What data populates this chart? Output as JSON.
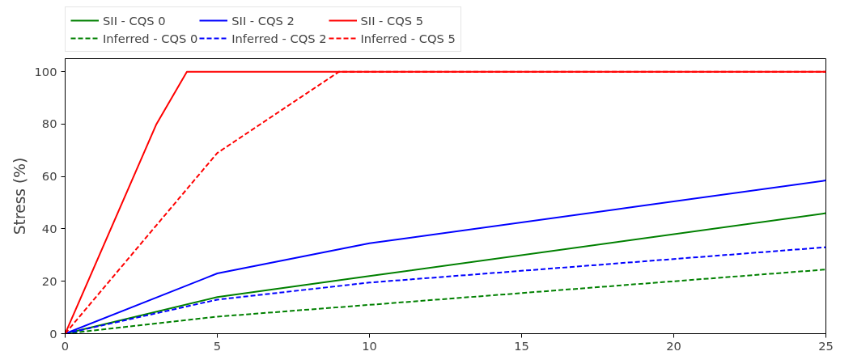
{
  "chart_data": {
    "type": "line",
    "ylabel": "Stress (%)",
    "xlim": [
      0,
      25
    ],
    "ylim": [
      0,
      105
    ],
    "xticks": [
      0,
      5,
      10,
      15,
      20,
      25
    ],
    "yticks": [
      0,
      20,
      40,
      60,
      80,
      100
    ],
    "grid": false,
    "legend": "top left",
    "marker": "none",
    "series": [
      {
        "name": "SII - CQS 0",
        "color": "#008000",
        "line_style": "solid",
        "x": [
          0,
          5,
          10,
          25
        ],
        "values": [
          0,
          14,
          22,
          46
        ]
      },
      {
        "name": "Inferred - CQS 0",
        "color": "#008000",
        "line_style": "dashed",
        "x": [
          0,
          5,
          10,
          25
        ],
        "values": [
          0,
          6.5,
          11,
          24.5
        ]
      },
      {
        "name": "SII - CQS 2",
        "color": "#0000ff",
        "line_style": "solid",
        "x": [
          0,
          5,
          10,
          25
        ],
        "values": [
          0,
          23,
          34.5,
          58.5
        ]
      },
      {
        "name": "Inferred - CQS 2",
        "color": "#0000ff",
        "line_style": "dashed",
        "x": [
          0,
          5,
          10,
          25
        ],
        "values": [
          0,
          13,
          19.5,
          33
        ]
      },
      {
        "name": "SII - CQS 5",
        "color": "#ff0000",
        "line_style": "solid",
        "x": [
          0,
          3,
          4,
          25
        ],
        "values": [
          0,
          80,
          100,
          100
        ]
      },
      {
        "name": "Inferred - CQS 5",
        "color": "#ff0000",
        "line_style": "dashed",
        "x": [
          0,
          5,
          9,
          25
        ],
        "values": [
          0,
          69,
          100,
          100
        ]
      }
    ]
  }
}
